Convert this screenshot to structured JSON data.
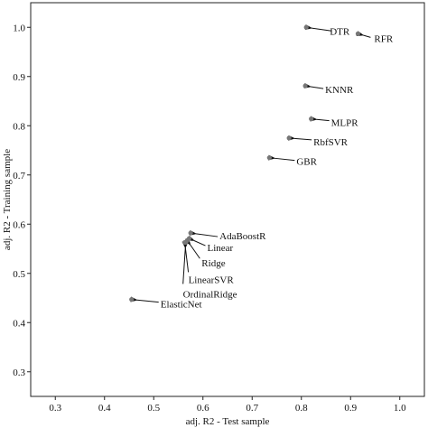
{
  "chart_data": {
    "type": "scatter",
    "title": "",
    "xlabel": "adj. R2 - Test sample",
    "ylabel": "adj. R2 - Training sample",
    "xlim": [
      0.25,
      1.05
    ],
    "ylim": [
      0.25,
      1.05
    ],
    "x_ticks": [
      "0.3",
      "0.4",
      "0.5",
      "0.6",
      "0.7",
      "0.8",
      "0.9",
      "1.0"
    ],
    "y_ticks": [
      "0.3",
      "0.4",
      "0.5",
      "0.6",
      "0.7",
      "0.8",
      "0.9",
      "1.0"
    ],
    "grid": false,
    "point_color": "#777777",
    "points": [
      {
        "label": "DTR",
        "x": 0.81,
        "y": 1.0
      },
      {
        "label": "RFR",
        "x": 0.915,
        "y": 0.987
      },
      {
        "label": "KNNR",
        "x": 0.808,
        "y": 0.881
      },
      {
        "label": "MLPR",
        "x": 0.82,
        "y": 0.814
      },
      {
        "label": "RbfSVR",
        "x": 0.775,
        "y": 0.775
      },
      {
        "label": "GBR",
        "x": 0.735,
        "y": 0.735
      },
      {
        "label": "AdaBoostR",
        "x": 0.575,
        "y": 0.582
      },
      {
        "label": "Linear",
        "x": 0.572,
        "y": 0.571
      },
      {
        "label": "Ridge",
        "x": 0.568,
        "y": 0.567
      },
      {
        "label": "LinearSVR",
        "x": 0.563,
        "y": 0.563
      },
      {
        "label": "OrdinalRidge",
        "x": 0.565,
        "y": 0.563
      },
      {
        "label": "ElasticNet",
        "x": 0.455,
        "y": 0.447
      }
    ]
  }
}
